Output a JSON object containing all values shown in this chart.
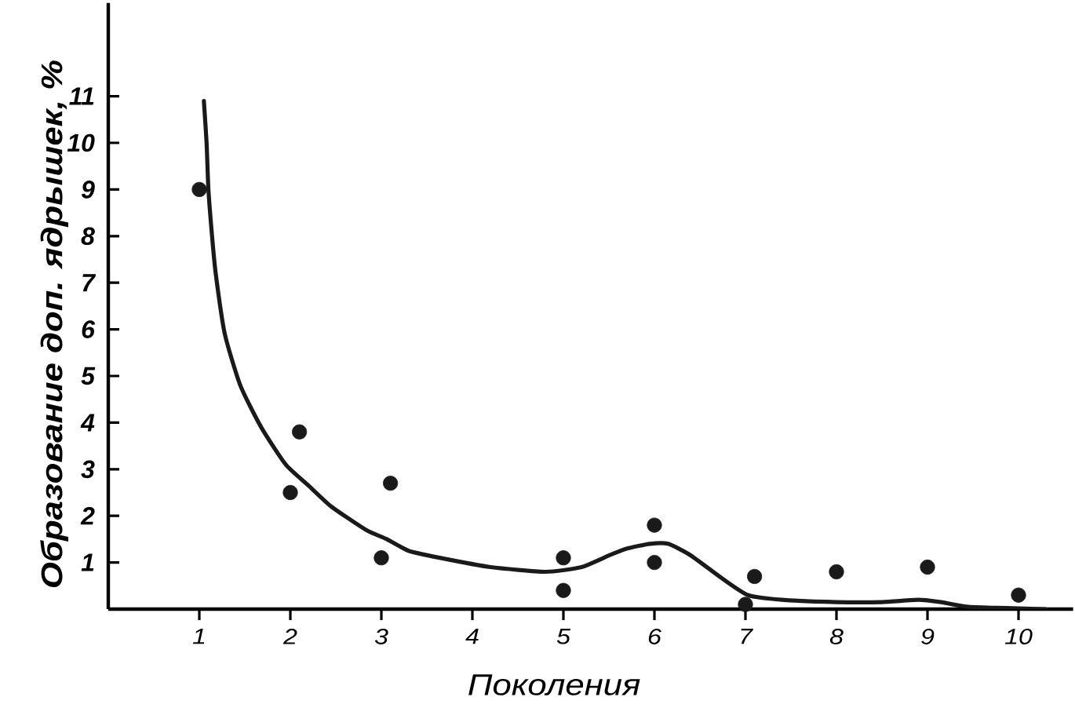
{
  "chart_data": {
    "type": "scatter",
    "xlabel": "Поколения",
    "ylabel": "Образование доп. ядрышек, %",
    "xlim": [
      0,
      10.6
    ],
    "ylim": [
      0,
      13
    ],
    "xticks": [
      1,
      2,
      3,
      4,
      5,
      6,
      7,
      8,
      9,
      10
    ],
    "yticks": [
      1,
      2,
      3,
      4,
      5,
      6,
      7,
      8,
      9,
      10,
      11
    ],
    "series": [
      {
        "color": "#1a1a1a",
        "marker": "circle",
        "x": [
          1.0,
          2.0,
          2.1,
          3.0,
          3.1,
          5.0,
          5.0,
          6.0,
          6.0,
          7.0,
          7.1,
          8.0,
          9.0,
          10.0
        ],
        "values": [
          9.0,
          2.5,
          3.8,
          1.1,
          2.7,
          1.1,
          0.4,
          1.8,
          1.0,
          0.1,
          0.7,
          0.8,
          0.9,
          0.3
        ]
      },
      {
        "type": "line",
        "color": "#1a1a1a",
        "marker": "none",
        "line_style": "solid",
        "x": [
          1.05,
          1.08,
          1.1,
          1.14,
          1.18,
          1.28,
          1.45,
          1.68,
          1.95,
          2.2,
          2.45,
          2.83,
          3.06,
          3.3,
          3.64,
          4.2,
          4.8,
          5.2,
          5.5,
          5.7,
          5.95,
          6.15,
          6.4,
          6.75,
          7.03,
          7.4,
          8.0,
          8.5,
          8.9,
          9.15,
          9.45,
          10.3
        ],
        "values": [
          10.9,
          10.0,
          9.0,
          8.0,
          7.2,
          5.9,
          4.8,
          3.9,
          3.1,
          2.65,
          2.2,
          1.7,
          1.5,
          1.25,
          1.1,
          0.9,
          0.8,
          0.9,
          1.15,
          1.3,
          1.4,
          1.4,
          1.15,
          0.65,
          0.3,
          0.2,
          0.15,
          0.15,
          0.2,
          0.15,
          0.05,
          0.0
        ]
      }
    ]
  }
}
